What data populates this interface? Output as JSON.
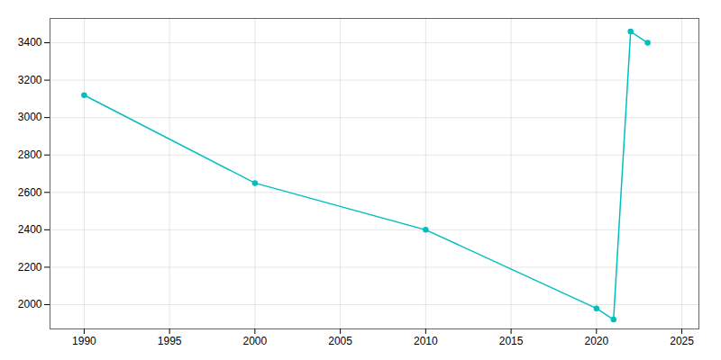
{
  "chart_data": {
    "type": "line",
    "x": [
      1990,
      2000,
      2010,
      2020,
      2021,
      2022,
      2023
    ],
    "values": [
      3120,
      2650,
      2400,
      1980,
      1920,
      3460,
      3400
    ],
    "color": "#00BFBF",
    "marker": "circle",
    "xlim": [
      1988,
      2026
    ],
    "ylim": [
      1870,
      3530
    ],
    "xticks": [
      1990,
      1995,
      2000,
      2005,
      2010,
      2015,
      2020,
      2025
    ],
    "yticks": [
      2000,
      2200,
      2400,
      2600,
      2800,
      3000,
      3200,
      3400
    ],
    "grid": true
  }
}
